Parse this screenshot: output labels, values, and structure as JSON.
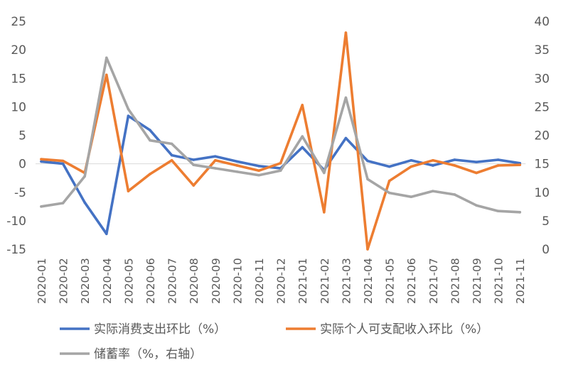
{
  "chart_data": {
    "type": "line",
    "categories": [
      "2020-01",
      "2020-02",
      "2020-03",
      "2020-04",
      "2020-05",
      "2020-06",
      "2020-07",
      "2020-08",
      "2020-09",
      "2020-10",
      "2020-11",
      "2020-12",
      "2021-01",
      "2021-02",
      "2021-03",
      "2021-04",
      "2021-05",
      "2021-06",
      "2021-07",
      "2021-08",
      "2021-09",
      "2021-10",
      "2021-11"
    ],
    "y_left": {
      "min": -15,
      "max": 25,
      "ticks": [
        -15,
        -10,
        -5,
        0,
        5,
        10,
        15,
        20,
        25
      ]
    },
    "y_right": {
      "min": 0,
      "max": 40,
      "ticks": [
        0,
        5,
        10,
        15,
        20,
        25,
        30,
        35,
        40
      ]
    },
    "grid": false,
    "legend_position": "bottom",
    "series": [
      {
        "name": "实际消费支出环比（%）",
        "axis": "left",
        "color": "#4472C4",
        "values": [
          0.4,
          0.0,
          -6.8,
          -12.3,
          8.4,
          5.9,
          1.5,
          0.7,
          1.3,
          0.4,
          -0.4,
          -0.8,
          2.9,
          -1.1,
          4.5,
          0.5,
          -0.5,
          0.6,
          -0.3,
          0.7,
          0.3,
          0.7,
          0.1
        ]
      },
      {
        "name": "实际个人可支配收入环比（%）",
        "axis": "left",
        "color": "#ED7D31",
        "values": [
          0.8,
          0.5,
          -1.6,
          15.6,
          -4.8,
          -1.8,
          0.6,
          -3.8,
          0.6,
          -0.3,
          -1.2,
          0.1,
          10.3,
          -8.5,
          23.0,
          -15.0,
          -3.0,
          -0.5,
          0.6,
          -0.3,
          -1.6,
          -0.3,
          -0.2
        ]
      },
      {
        "name": "储蓄率（%，右轴）",
        "axis": "right",
        "color": "#A5A5A5",
        "values": [
          7.5,
          8.1,
          12.8,
          33.6,
          24.6,
          19.1,
          18.5,
          14.8,
          14.2,
          13.6,
          13.0,
          13.8,
          19.8,
          13.4,
          26.6,
          12.3,
          9.9,
          9.2,
          10.2,
          9.6,
          7.7,
          6.7,
          6.5
        ]
      }
    ]
  }
}
